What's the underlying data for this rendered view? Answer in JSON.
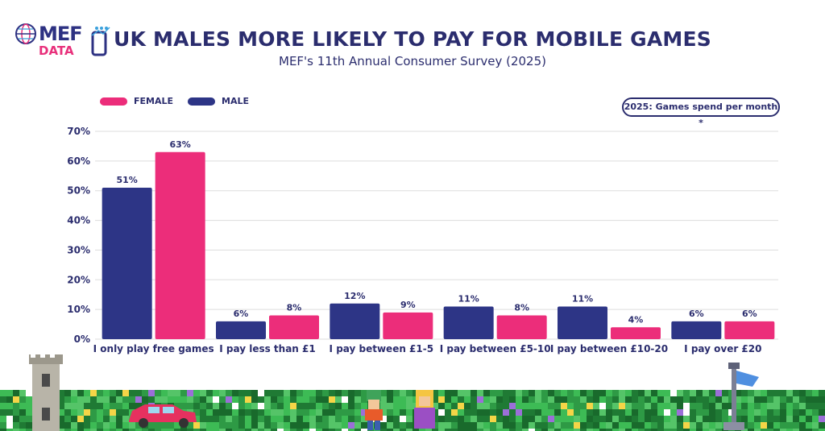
{
  "logo": {
    "text": "MEF",
    "sub": "DATA"
  },
  "header": {
    "title": "UK MALES MORE LIKELY TO PAY FOR MOBILE GAMES",
    "subtitle": "MEF's 11th Annual Consumer Survey (2025)"
  },
  "badge": "2025: Games spend per month *",
  "colors": {
    "female": "#ec2d7a",
    "male": "#2d3586",
    "text": "#2b2d6e",
    "grid": "#dddddd"
  },
  "chart_data": {
    "type": "bar",
    "categories": [
      "I only play free games",
      "I pay less than £1",
      "I pay between £1-5",
      "I pay between £5-10",
      "I pay between £10-20",
      "I pay over £20"
    ],
    "series": [
      {
        "name": "MALE",
        "values": [
          51,
          6,
          12,
          11,
          11,
          6
        ],
        "labels": [
          "51%",
          "6%",
          "12%",
          "11%",
          "11%",
          "6%"
        ]
      },
      {
        "name": "FEMALE",
        "values": [
          63,
          8,
          9,
          8,
          4,
          6
        ],
        "labels": [
          "63%",
          "8%",
          "9%",
          "8%",
          "4%",
          "6%"
        ]
      }
    ],
    "legend_order": [
      "FEMALE",
      "MALE"
    ],
    "legend_position": "top-left",
    "ylim": [
      0,
      70
    ],
    "yticks": [
      "0%",
      "10%",
      "20%",
      "30%",
      "40%",
      "50%",
      "60%",
      "70%"
    ],
    "grid": true
  }
}
